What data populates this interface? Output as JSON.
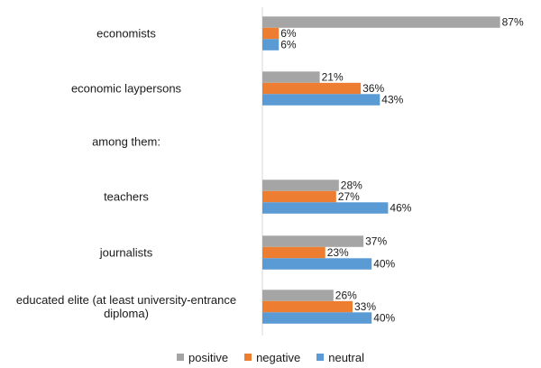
{
  "chart_data": {
    "type": "bar",
    "orientation": "horizontal",
    "categories": [
      "economists",
      "economic laypersons",
      "among them:",
      "teachers",
      "journalists",
      "educated elite (at least university-entrance diploma)"
    ],
    "series": [
      {
        "name": "positive",
        "color": "#a5a5a5",
        "values": [
          87,
          21,
          null,
          28,
          37,
          26
        ]
      },
      {
        "name": "negative",
        "color": "#ed7d31",
        "values": [
          6,
          36,
          null,
          27,
          23,
          33
        ]
      },
      {
        "name": "neutral",
        "color": "#5b9bd5",
        "values": [
          6,
          43,
          null,
          46,
          40,
          40
        ]
      }
    ],
    "value_suffix": "%",
    "xlim": [
      0,
      100
    ],
    "grid": false,
    "legend_position": "bottom",
    "title": "",
    "xlabel": "",
    "ylabel": ""
  }
}
